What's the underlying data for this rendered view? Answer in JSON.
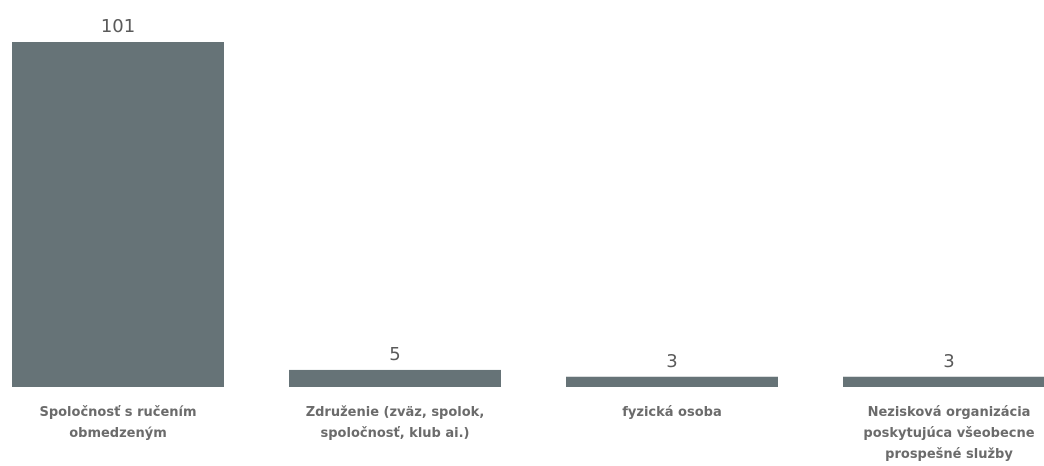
{
  "chart_data": {
    "type": "bar",
    "categories": [
      [
        "Spoločnosť s ručením",
        "obmedzeným"
      ],
      [
        "Združenie (zväz, spolok,",
        "spoločnosť, klub ai.)"
      ],
      [
        "fyzická osoba"
      ],
      [
        "Nezisková organizácia",
        "poskytujúca všeobecne",
        "prospešné služby"
      ]
    ],
    "values": [
      101,
      5,
      3,
      3
    ],
    "data_labels": [
      "101",
      "5",
      "3",
      "3"
    ],
    "ylim": [
      0,
      101
    ],
    "grid": false,
    "legend": "none",
    "colors": {
      "bar": "#667377",
      "value_label": "#5a5a5a",
      "category_label": "#6b6b6b"
    }
  }
}
